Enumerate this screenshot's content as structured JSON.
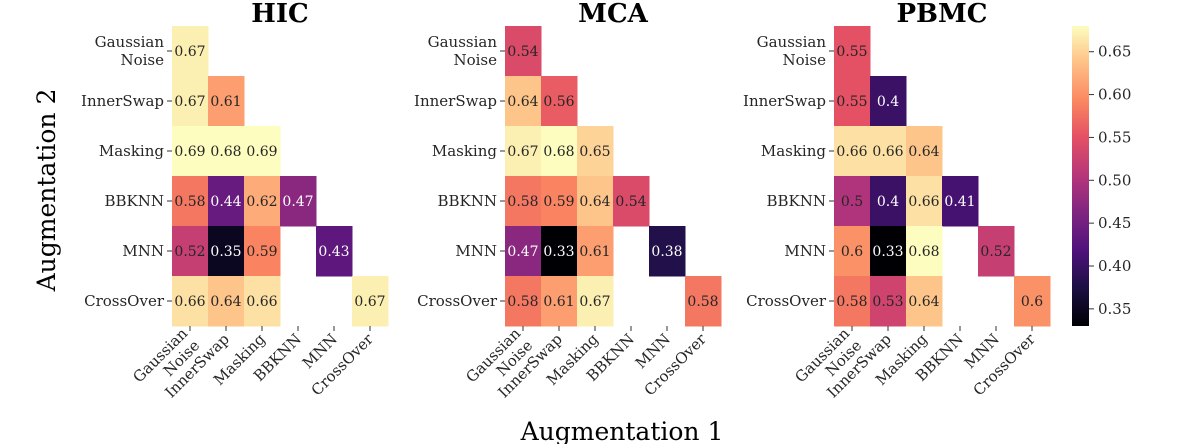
{
  "figure": {
    "xlabel": "Augmentation 1",
    "ylabel": "Augmentation 2"
  },
  "chart_data": {
    "type": "heatmap",
    "row_labels": [
      [
        "Gaussian",
        "Noise"
      ],
      [
        "InnerSwap"
      ],
      [
        "Masking"
      ],
      [
        "BBKNN"
      ],
      [
        "MNN"
      ],
      [
        "CrossOver"
      ]
    ],
    "col_labels": [
      [
        "Gaussian",
        "Noise"
      ],
      [
        "InnerSwap"
      ],
      [
        "Masking"
      ],
      [
        "BBKNN"
      ],
      [
        "MNN"
      ],
      [
        "CrossOver"
      ]
    ],
    "colorbar": {
      "vmin": 0.33,
      "vmax": 0.68,
      "ticks": [
        "0.35",
        "0.40",
        "0.45",
        "0.50",
        "0.55",
        "0.60",
        "0.65"
      ],
      "colormap": "magma"
    },
    "panels": [
      {
        "title": "HIC",
        "values": [
          [
            0.67,
            null,
            null,
            null,
            null,
            null
          ],
          [
            0.67,
            0.61,
            null,
            null,
            null,
            null
          ],
          [
            0.69,
            0.68,
            0.69,
            null,
            null,
            null
          ],
          [
            0.58,
            0.44,
            0.62,
            0.47,
            null,
            null
          ],
          [
            0.52,
            0.35,
            0.59,
            null,
            0.43,
            null
          ],
          [
            0.66,
            0.64,
            0.66,
            null,
            null,
            0.67
          ]
        ],
        "labels": [
          [
            "0.67",
            null,
            null,
            null,
            null,
            null
          ],
          [
            "0.67",
            "0.61",
            null,
            null,
            null,
            null
          ],
          [
            "0.69",
            "0.68",
            "0.69",
            null,
            null,
            null
          ],
          [
            "0.58",
            "0.44",
            "0.62",
            "0.47",
            null,
            null
          ],
          [
            "0.52",
            "0.35",
            "0.59",
            null,
            "0.43",
            null
          ],
          [
            "0.66",
            "0.64",
            "0.66",
            null,
            null,
            "0.67"
          ]
        ]
      },
      {
        "title": "MCA",
        "values": [
          [
            0.54,
            null,
            null,
            null,
            null,
            null
          ],
          [
            0.64,
            0.56,
            null,
            null,
            null,
            null
          ],
          [
            0.67,
            0.68,
            0.65,
            null,
            null,
            null
          ],
          [
            0.58,
            0.59,
            0.64,
            0.54,
            null,
            null
          ],
          [
            0.47,
            0.33,
            0.61,
            null,
            0.38,
            null
          ],
          [
            0.58,
            0.61,
            0.67,
            null,
            null,
            0.58
          ]
        ],
        "labels": [
          [
            "0.54",
            null,
            null,
            null,
            null,
            null
          ],
          [
            "0.64",
            "0.56",
            null,
            null,
            null,
            null
          ],
          [
            "0.67",
            "0.68",
            "0.65",
            null,
            null,
            null
          ],
          [
            "0.58",
            "0.59",
            "0.64",
            "0.54",
            null,
            null
          ],
          [
            "0.47",
            "0.33",
            "0.61",
            null,
            "0.38",
            null
          ],
          [
            "0.58",
            "0.61",
            "0.67",
            null,
            null,
            "0.58"
          ]
        ]
      },
      {
        "title": "PBMC",
        "values": [
          [
            0.55,
            null,
            null,
            null,
            null,
            null
          ],
          [
            0.55,
            0.4,
            null,
            null,
            null,
            null
          ],
          [
            0.66,
            0.66,
            0.64,
            null,
            null,
            null
          ],
          [
            0.5,
            0.4,
            0.66,
            0.41,
            null,
            null
          ],
          [
            0.6,
            0.33,
            0.68,
            null,
            0.52,
            null
          ],
          [
            0.58,
            0.53,
            0.64,
            null,
            null,
            0.6
          ]
        ],
        "labels": [
          [
            "0.55",
            null,
            null,
            null,
            null,
            null
          ],
          [
            "0.55",
            "0.4",
            null,
            null,
            null,
            null
          ],
          [
            "0.66",
            "0.66",
            "0.64",
            null,
            null,
            null
          ],
          [
            "0.5",
            "0.4",
            "0.66",
            "0.41",
            null,
            null
          ],
          [
            "0.6",
            "0.33",
            "0.68",
            null,
            "0.52",
            null
          ],
          [
            "0.58",
            "0.53",
            "0.64",
            null,
            null,
            "0.6"
          ]
        ]
      }
    ]
  }
}
